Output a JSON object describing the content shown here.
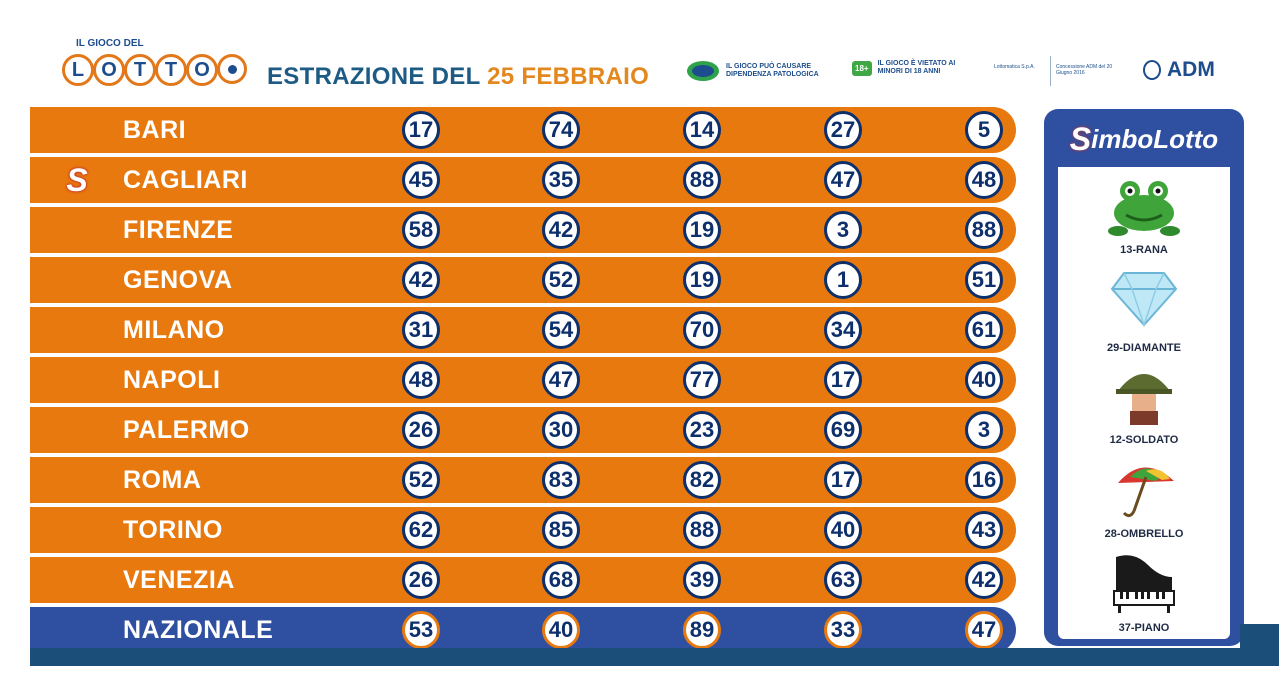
{
  "header": {
    "logo_small": "IL GIOCO DEL",
    "logo_letters": [
      "L",
      "O",
      "T",
      "T",
      "O"
    ],
    "title_prefix": "ESTRAZIONE DEL",
    "title_date": "25 FEBBRAIO",
    "warn1_text": "IL GIOCO PUÒ CAUSARE DIPENDENZA PATOLOGICA",
    "warn2_badge": "18+",
    "warn2_text": "IL GIOCO È VIETATO AI MINORI DI 18 ANNI",
    "legal1": "Lottomatica S.p.A.",
    "legal2": "Concessione ADM del 20 Giugno 2016",
    "adm": "ADM"
  },
  "draws": [
    {
      "city": "BARI",
      "numbers": [
        "17",
        "74",
        "14",
        "27",
        "5"
      ],
      "simbolotto": false
    },
    {
      "city": "CAGLIARI",
      "numbers": [
        "45",
        "35",
        "88",
        "47",
        "48"
      ],
      "simbolotto": true
    },
    {
      "city": "FIRENZE",
      "numbers": [
        "58",
        "42",
        "19",
        "3",
        "88"
      ],
      "simbolotto": false
    },
    {
      "city": "GENOVA",
      "numbers": [
        "42",
        "52",
        "19",
        "1",
        "51"
      ],
      "simbolotto": false
    },
    {
      "city": "MILANO",
      "numbers": [
        "31",
        "54",
        "70",
        "34",
        "61"
      ],
      "simbolotto": false
    },
    {
      "city": "NAPOLI",
      "numbers": [
        "48",
        "47",
        "77",
        "17",
        "40"
      ],
      "simbolotto": false
    },
    {
      "city": "PALERMO",
      "numbers": [
        "26",
        "30",
        "23",
        "69",
        "3"
      ],
      "simbolotto": false
    },
    {
      "city": "ROMA",
      "numbers": [
        "52",
        "83",
        "82",
        "17",
        "16"
      ],
      "simbolotto": false
    },
    {
      "city": "TORINO",
      "numbers": [
        "62",
        "85",
        "88",
        "40",
        "43"
      ],
      "simbolotto": false
    },
    {
      "city": "VENEZIA",
      "numbers": [
        "26",
        "68",
        "39",
        "63",
        "42"
      ],
      "simbolotto": false
    },
    {
      "city": "NAZIONALE",
      "numbers": [
        "53",
        "40",
        "89",
        "33",
        "47"
      ],
      "simbolotto": false
    }
  ],
  "simbolotto": {
    "title_s": "S",
    "title_rest": "imboLotto",
    "symbols": [
      {
        "label": "13-RANA",
        "icon": "frog-icon"
      },
      {
        "label": "29-DIAMANTE",
        "icon": "diamond-icon"
      },
      {
        "label": "12-SOLDATO",
        "icon": "soldier-icon"
      },
      {
        "label": "28-OMBRELLO",
        "icon": "umbrella-icon"
      },
      {
        "label": "37-PIANO",
        "icon": "piano-icon"
      }
    ]
  },
  "colors": {
    "row": "#e8790e",
    "national_row": "#2f4fa0",
    "number_ring": "#0d2f6b",
    "accent": "#e3871f"
  }
}
